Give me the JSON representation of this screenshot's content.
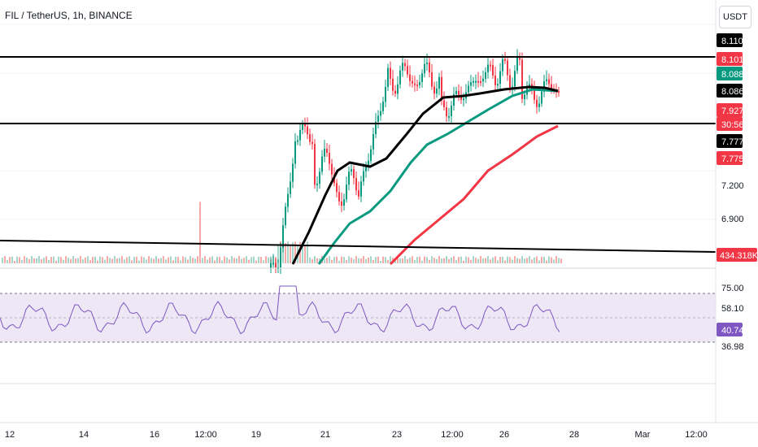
{
  "header": {
    "title": "FIL / TetherUS, 1h, BINANCE",
    "currency": "USDT"
  },
  "price_axis": {
    "ticks": [
      "7.200",
      "6.900"
    ],
    "tags": [
      {
        "label": "8.110",
        "bg": "#000000",
        "fg": "#ffffff"
      },
      {
        "label": "8.101",
        "bg": "#f23645",
        "fg": "#ffffff"
      },
      {
        "label": "8.088",
        "bg": "#089981",
        "fg": "#ffffff"
      },
      {
        "label": "8.086",
        "bg": "#000000",
        "fg": "#ffffff"
      },
      {
        "label": "7.927",
        "bg": "#f23645",
        "fg": "#ffffff"
      },
      {
        "label": "30:56",
        "bg": "#f23645",
        "fg": "#ffffff"
      },
      {
        "label": "7.777",
        "bg": "#000000",
        "fg": "#ffffff"
      },
      {
        "label": "7.775",
        "bg": "#f23645",
        "fg": "#ffffff"
      },
      {
        "label": "434.318K",
        "bg": "#f23645",
        "fg": "#ffffff"
      }
    ]
  },
  "rsi_axis": {
    "ticks": [
      "75.00",
      "58.10",
      "36.98"
    ],
    "current": {
      "label": "40.74",
      "bg": "#7e57c2",
      "fg": "#ffffff"
    }
  },
  "time_axis": {
    "labels": [
      "12",
      "14",
      "16",
      "12:00",
      "19",
      "21",
      "23",
      "12:00",
      "26",
      "28",
      "Mar",
      "12:00"
    ]
  },
  "colors": {
    "up": "#089981",
    "down": "#f23645",
    "ma_black": "#000000",
    "ma_green": "#089981",
    "ma_red": "#f23645",
    "rsi_line": "#7e57c2",
    "rsi_band": "#ede7f6"
  }
}
